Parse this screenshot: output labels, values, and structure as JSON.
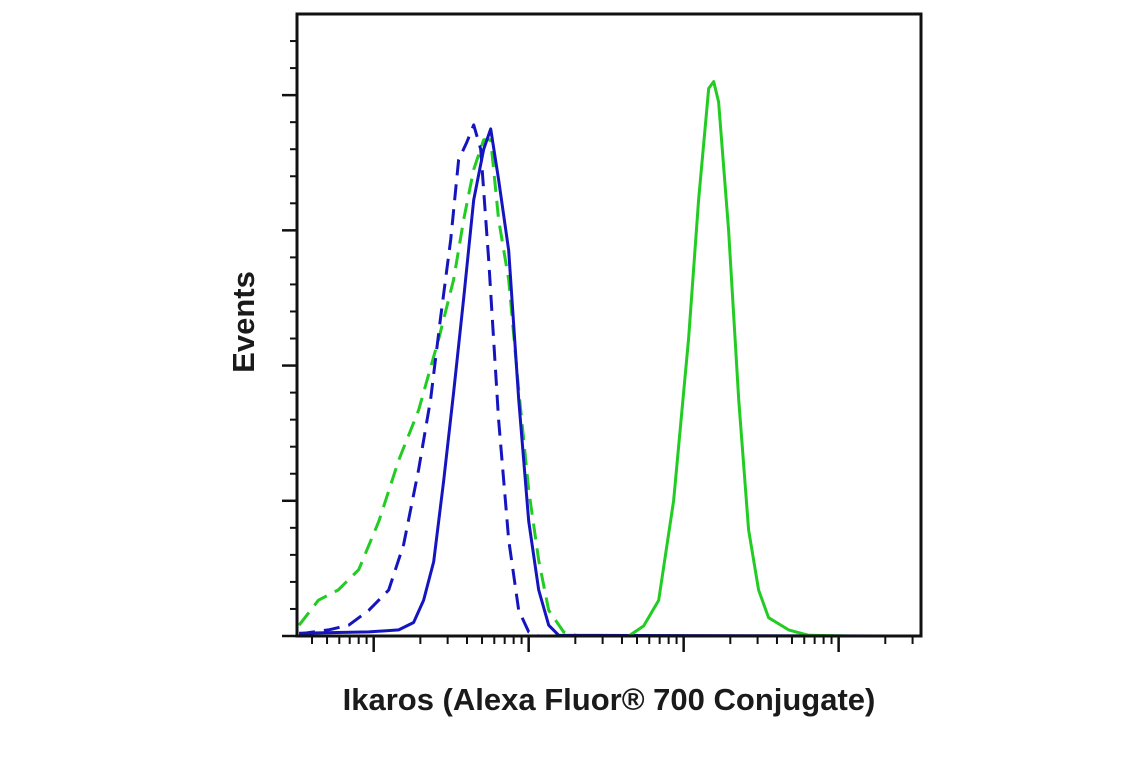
{
  "chart_data": {
    "type": "line",
    "x_label": "Ikaros (Alexa Fluor® 700 Conjugate)",
    "y_label": "Events",
    "x_scale": "log",
    "xlim": [
      32,
      340000
    ],
    "xticks": [
      100,
      1000,
      10000,
      100000
    ],
    "xminorticks": [
      40,
      50,
      60,
      70,
      80,
      90,
      200,
      300,
      400,
      500,
      600,
      700,
      800,
      900,
      2000,
      3000,
      4000,
      5000,
      6000,
      7000,
      8000,
      9000,
      20000,
      30000,
      40000,
      50000,
      60000,
      70000,
      80000,
      90000,
      200000,
      300000
    ],
    "ylim": [
      0,
      92
    ],
    "yticks": [
      0,
      20,
      40,
      60,
      80
    ],
    "yminorticks": [
      4,
      8,
      12,
      16,
      24,
      28,
      32,
      36,
      44,
      48,
      52,
      56,
      64,
      68,
      72,
      76,
      84,
      88
    ],
    "grid": false,
    "series": [
      {
        "color": "#22cc22",
        "dashed": true,
        "x": [
          33,
          44,
          59,
          80,
          108,
          145,
          195,
          263,
          328,
          381,
          442,
          513,
          569,
          640,
          743,
          862,
          1000,
          1161,
          1346,
          1680,
          2090,
          328000
        ],
        "values": [
          1.6,
          5.3,
          6.8,
          9.8,
          17,
          26,
          33.4,
          44,
          52.7,
          61.6,
          69,
          73.4,
          73.4,
          61.6,
          52.7,
          36.4,
          21.6,
          11.2,
          3.8,
          0.6,
          0,
          0
        ]
      },
      {
        "color": "#1515c0",
        "dashed": true,
        "x": [
          33,
          51,
          69,
          93,
          125,
          156,
          195,
          233,
          270,
          314,
          353,
          398,
          442,
          490,
          552,
          640,
          743,
          862,
          1000,
          1161,
          328000
        ],
        "values": [
          0.3,
          0.9,
          1.6,
          3.8,
          6.8,
          13.5,
          24.6,
          35,
          47,
          58.6,
          70.4,
          73,
          75.6,
          72,
          55.6,
          32,
          14.2,
          3.8,
          0.6,
          0,
          0
        ]
      },
      {
        "color": "#1515c0",
        "dashed": false,
        "x": [
          33,
          93,
          145,
          181,
          210,
          244,
          283,
          328,
          381,
          442,
          513,
          569,
          640,
          743,
          862,
          1000,
          1161,
          1346,
          1563,
          328000
        ],
        "values": [
          0.4,
          0.6,
          0.9,
          2,
          5.3,
          11,
          23,
          36,
          50,
          64.5,
          72,
          75,
          67.5,
          57,
          35,
          17,
          6.8,
          1.6,
          0.1,
          0
        ]
      },
      {
        "color": "#22cc22",
        "dashed": false,
        "x": [
          33,
          4420,
          5520,
          6900,
          8610,
          10770,
          12490,
          14500,
          15630,
          16810,
          19500,
          22650,
          26250,
          30470,
          35330,
          47570,
          64000,
          116000,
          328000
        ],
        "values": [
          0,
          0,
          1.5,
          5.3,
          20,
          44,
          64.5,
          81,
          82,
          79,
          60,
          35,
          15.7,
          6.8,
          2.7,
          0.9,
          0.1,
          0,
          0
        ]
      }
    ]
  }
}
